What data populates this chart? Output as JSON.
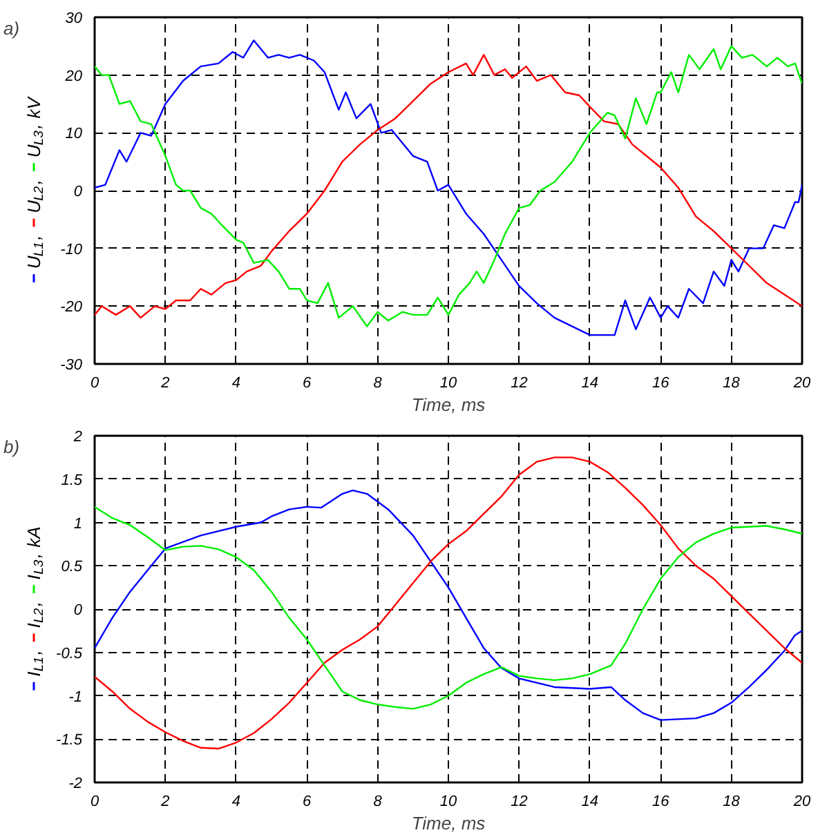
{
  "chart_data": [
    {
      "type": "line",
      "title": "a)",
      "xlabel": "Time, ms",
      "ylabel": "U$_{L1}$, U$_{L2}$, U$_{L3}$, kV",
      "xlim": [
        0,
        20
      ],
      "ylim": [
        -30,
        30
      ],
      "xticks": [
        0,
        2,
        4,
        6,
        8,
        10,
        12,
        14,
        16,
        18,
        20
      ],
      "yticks": [
        -30,
        -20,
        -10,
        0,
        10,
        20,
        30
      ],
      "grid": true,
      "line_style": "solid",
      "series": [
        {
          "color": "#0000ff",
          "x": [
            0,
            0.3,
            0.7,
            0.9,
            1.3,
            1.6,
            2,
            2.5,
            3,
            3.5,
            3.9,
            4.2,
            4.5,
            4.9,
            5.2,
            5.5,
            5.8,
            6.2,
            6.5,
            6.9,
            7.1,
            7.4,
            7.8,
            8.1,
            8.4,
            9,
            9.4,
            9.7,
            10,
            10.5,
            11,
            11.5,
            12,
            12.5,
            13,
            14,
            14.3,
            14.7,
            15,
            15.3,
            15.7,
            16,
            16.2,
            16.5,
            16.8,
            17.2,
            17.5,
            17.8,
            18,
            18.2,
            18.5,
            18.9,
            19.2,
            19.5,
            19.8,
            19.9,
            20
          ],
          "values": [
            0.5,
            1,
            7,
            5,
            10,
            9.5,
            15,
            19,
            21.5,
            22,
            24,
            23,
            26,
            23,
            23.5,
            23,
            23.5,
            22.5,
            20.5,
            14,
            17,
            12.5,
            15,
            10,
            10.5,
            6,
            5,
            0,
            1,
            -4,
            -7.5,
            -12,
            -16.5,
            -19.5,
            -22,
            -25,
            -25,
            -25,
            -19,
            -24,
            -18.5,
            -22,
            -20,
            -22,
            -17,
            -19.5,
            -14,
            -16.5,
            -12,
            -14,
            -10,
            -10,
            -6,
            -6.5,
            -2,
            -2,
            1
          ]
        },
        {
          "color": "#ff0000",
          "x": [
            0,
            0.2,
            0.6,
            1,
            1.3,
            1.7,
            2,
            2.3,
            2.7,
            3,
            3.3,
            3.7,
            4,
            4.3,
            4.7,
            5,
            5.5,
            6,
            6.5,
            7,
            7.5,
            8,
            8.5,
            9,
            9.5,
            10,
            10.5,
            10.7,
            11,
            11.3,
            11.6,
            11.8,
            12.2,
            12.5,
            12.9,
            13.3,
            13.7,
            14,
            14.4,
            14.8,
            15.2,
            15.6,
            16,
            16.5,
            17,
            17.5,
            18,
            18.5,
            19,
            19.5,
            20
          ],
          "values": [
            -21.5,
            -20,
            -21.5,
            -20,
            -22,
            -20,
            -20.5,
            -19,
            -19,
            -17,
            -18,
            -16,
            -15.5,
            -14,
            -13,
            -10.5,
            -7,
            -4,
            0,
            5,
            8,
            10.5,
            12.5,
            15.5,
            18.5,
            20.5,
            22,
            20,
            23.5,
            20,
            21,
            19.5,
            21.5,
            19,
            20,
            17,
            16.5,
            14.5,
            12,
            11.5,
            8,
            6,
            4,
            0.5,
            -4.5,
            -7,
            -10,
            -13,
            -16,
            -18,
            -20
          ]
        },
        {
          "color": "#00ee00",
          "x": [
            0,
            0.2,
            0.4,
            0.7,
            1,
            1.3,
            1.6,
            2,
            2.3,
            2.5,
            2.7,
            3,
            3.3,
            3.6,
            4,
            4.2,
            4.5,
            4.9,
            5.2,
            5.5,
            5.8,
            6,
            6.3,
            6.6,
            6.9,
            7.3,
            7.7,
            8,
            8.3,
            8.7,
            9,
            9.4,
            9.7,
            10,
            10.3,
            10.6,
            10.8,
            11,
            11.3,
            11.6,
            12,
            12.3,
            12.6,
            13,
            13.5,
            14,
            14.5,
            14.7,
            15,
            15.3,
            15.6,
            15.9,
            16,
            16.3,
            16.5,
            16.8,
            17.1,
            17.5,
            17.7,
            18,
            18.3,
            18.6,
            19,
            19.3,
            19.6,
            19.8,
            20
          ],
          "values": [
            21.5,
            20,
            20,
            15,
            15.5,
            12,
            11.5,
            6,
            1,
            0,
            0,
            -3,
            -4,
            -6,
            -8.5,
            -9,
            -12.5,
            -12,
            -14,
            -17,
            -17,
            -19,
            -19.5,
            -16,
            -22,
            -20,
            -23.5,
            -21,
            -22.5,
            -21,
            -21.5,
            -21.5,
            -18.5,
            -21.5,
            -18,
            -16,
            -14,
            -16,
            -12,
            -7.5,
            -3,
            -2.5,
            0,
            1.5,
            5,
            10,
            13.5,
            13,
            9,
            16,
            11.5,
            17,
            17,
            20.5,
            17,
            23.5,
            21,
            24.5,
            21,
            25,
            23,
            23.5,
            21.5,
            23,
            21.5,
            22,
            18.5
          ]
        }
      ]
    },
    {
      "type": "line",
      "title": "b)",
      "xlabel": "Time, ms",
      "ylabel": "I$_{L1}$, I$_{L2}$, I$_{L3}$, kA",
      "xlim": [
        0,
        20
      ],
      "ylim": [
        -2,
        2
      ],
      "xticks": [
        0,
        2,
        4,
        6,
        8,
        10,
        12,
        14,
        16,
        18,
        20
      ],
      "yticks": [
        -2,
        -1.5,
        -1,
        -0.5,
        0,
        0.5,
        1,
        1.5,
        2
      ],
      "grid": true,
      "line_style": "solid",
      "series": [
        {
          "color": "#0000ff",
          "x": [
            0,
            0.5,
            1,
            1.5,
            2,
            3,
            4,
            4.7,
            5,
            5.5,
            6,
            6.4,
            7,
            7.3,
            7.7,
            8.3,
            9,
            9.5,
            10,
            10.5,
            11,
            11.5,
            12,
            13,
            14,
            14.6,
            15,
            15.5,
            16,
            16.5,
            17,
            17.5,
            18,
            18.5,
            19,
            19.5,
            19.8,
            20
          ],
          "values": [
            -0.45,
            -0.1,
            0.2,
            0.45,
            0.7,
            0.85,
            0.95,
            1.0,
            1.07,
            1.15,
            1.18,
            1.17,
            1.33,
            1.37,
            1.33,
            1.15,
            0.85,
            0.55,
            0.25,
            -0.1,
            -0.45,
            -0.68,
            -0.8,
            -0.9,
            -0.92,
            -0.9,
            -1.05,
            -1.2,
            -1.28,
            -1.27,
            -1.26,
            -1.2,
            -1.08,
            -0.9,
            -0.7,
            -0.48,
            -0.3,
            -0.25
          ]
        },
        {
          "color": "#ff0000",
          "x": [
            0,
            0.5,
            1,
            1.5,
            2,
            2.5,
            3,
            3.5,
            4,
            4.5,
            5,
            5.5,
            6,
            6.5,
            7,
            7.5,
            8,
            8.5,
            9,
            9.5,
            10,
            10.5,
            11,
            11.5,
            12,
            12.5,
            13,
            13.5,
            14,
            14.5,
            15,
            15.5,
            16,
            16.5,
            17,
            17.5,
            18,
            18.5,
            19,
            19.5,
            20
          ],
          "values": [
            -0.78,
            -0.95,
            -1.15,
            -1.3,
            -1.42,
            -1.52,
            -1.6,
            -1.61,
            -1.54,
            -1.43,
            -1.27,
            -1.08,
            -0.85,
            -0.62,
            -0.47,
            -0.35,
            -0.2,
            0.05,
            0.3,
            0.55,
            0.75,
            0.9,
            1.1,
            1.3,
            1.55,
            1.7,
            1.75,
            1.75,
            1.7,
            1.58,
            1.4,
            1.2,
            0.97,
            0.7,
            0.5,
            0.35,
            0.15,
            -0.05,
            -0.25,
            -0.45,
            -0.62
          ]
        },
        {
          "color": "#00ee00",
          "x": [
            0,
            0.5,
            1,
            1.5,
            2,
            2.5,
            3,
            3.5,
            4,
            4.5,
            5,
            5.5,
            6,
            6.5,
            7,
            7.5,
            8,
            8.5,
            9,
            9.5,
            10,
            10.5,
            11,
            11.5,
            12,
            12.5,
            13,
            13.5,
            14,
            14.6,
            15,
            15.5,
            16,
            16.5,
            17,
            17.5,
            18,
            18.5,
            19,
            19.5,
            20
          ],
          "values": [
            1.18,
            1.05,
            0.97,
            0.83,
            0.68,
            0.72,
            0.73,
            0.69,
            0.6,
            0.45,
            0.2,
            -0.1,
            -0.35,
            -0.65,
            -0.95,
            -1.05,
            -1.1,
            -1.13,
            -1.15,
            -1.1,
            -1.0,
            -0.85,
            -0.75,
            -0.67,
            -0.77,
            -0.8,
            -0.82,
            -0.8,
            -0.75,
            -0.65,
            -0.4,
            0.0,
            0.35,
            0.6,
            0.77,
            0.87,
            0.94,
            0.95,
            0.96,
            0.92,
            0.87
          ]
        }
      ]
    }
  ]
}
